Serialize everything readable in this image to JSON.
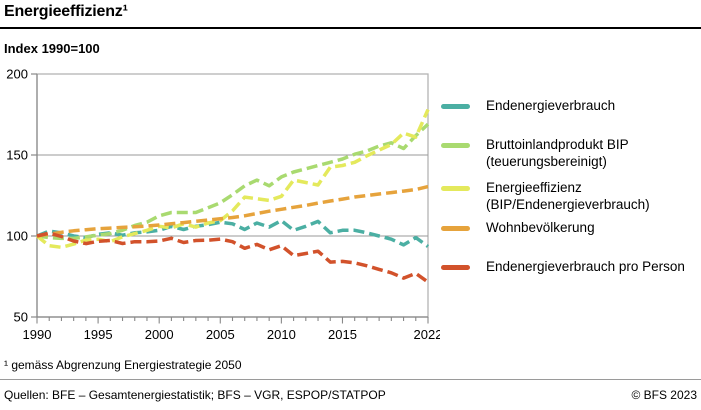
{
  "header": {
    "title": "Energieeffizienz¹",
    "subtitle": "Index 1990=100"
  },
  "footnote": "¹ gemäss Abgrenzung Energiestrategie 2050",
  "footer": {
    "sources": "Quellen: BFE – Gesamtenergiestatistik; BFS – VGR, ESPOP/STATPOP",
    "copyright": "© BFS 2023"
  },
  "colors": {
    "plot_border": "#b4b4b4",
    "gridline": "#999999",
    "axis": "#888888",
    "text": "#000000"
  },
  "chart_data": {
    "type": "line",
    "line_style": "dashed",
    "title": "Energieeffizienz",
    "ylabel": "Index 1990=100",
    "ylim": [
      50,
      200
    ],
    "y_ticks": [
      50,
      100,
      150,
      200
    ],
    "x_tick_labels": [
      1990,
      1995,
      2000,
      2005,
      2010,
      2015,
      2022
    ],
    "grid": true,
    "legend_position": "right",
    "years": [
      1990,
      1991,
      1992,
      1993,
      1994,
      1995,
      1996,
      1997,
      1998,
      1999,
      2000,
      2001,
      2002,
      2003,
      2004,
      2005,
      2006,
      2007,
      2008,
      2009,
      2010,
      2011,
      2012,
      2013,
      2014,
      2015,
      2016,
      2017,
      2018,
      2019,
      2020,
      2021,
      2022
    ],
    "series": [
      {
        "key": "endenergieverbrauch",
        "name": "Endenergieverbrauch",
        "color": "#4bafa3",
        "values": [
          100,
          103,
          102,
          100,
          99,
          101,
          102,
          100.5,
          102,
          102.5,
          103.5,
          106,
          104,
          106,
          107,
          108.5,
          107.5,
          104,
          108,
          105.5,
          109.5,
          103.5,
          106,
          109,
          102,
          103.5,
          103.5,
          102,
          100,
          98,
          94.5,
          99,
          93.5
        ]
      },
      {
        "key": "bip",
        "name": "Bruttoinlandprodukt BIP (teuerungsbereinigt)",
        "color": "#a9da70",
        "values": [
          100,
          99,
          98.5,
          98.5,
          99.5,
          100.5,
          101.5,
          103.5,
          106.5,
          108.5,
          112.5,
          114.5,
          114.5,
          114.5,
          117.5,
          120.5,
          125.5,
          131,
          134.5,
          131,
          136.5,
          139.5,
          141.5,
          143.5,
          145.5,
          147.5,
          150.5,
          152.5,
          155.5,
          157.5,
          154,
          162,
          169
        ]
      },
      {
        "key": "energieeffizienz",
        "name": "Energieeffizienz (BIP/Endenergieverbrauch)",
        "color": "#e4e95c",
        "values": [
          100,
          94,
          93,
          95,
          97.5,
          98,
          96.5,
          99.5,
          101.5,
          103.5,
          106,
          105,
          107.5,
          105.5,
          108,
          109.5,
          115.5,
          124,
          123,
          122,
          124.5,
          134.5,
          133,
          131.5,
          142.5,
          143.5,
          145.5,
          149.5,
          153,
          156.5,
          163.5,
          161,
          178
        ]
      },
      {
        "key": "wohnbevoelkerung",
        "name": "Wohnbevölkerung",
        "color": "#e6a33c",
        "values": [
          100,
          101.2,
          102.3,
          103.2,
          103.9,
          104.5,
          104.9,
          105.3,
          105.7,
          106.2,
          106.8,
          107.5,
          108.3,
          109.1,
          109.9,
          110.6,
          111.4,
          112.5,
          113.9,
          115.3,
          116.5,
          117.7,
          118.9,
          120.3,
          121.6,
          122.8,
          124.1,
          125,
          125.9,
          126.8,
          127.7,
          128.7,
          130.5
        ]
      },
      {
        "key": "endenergieverbrauch-pro-person",
        "name": "Endenergieverbrauch pro Person",
        "color": "#d2522b",
        "values": [
          100,
          101.8,
          99.7,
          96.9,
          95.3,
          96.7,
          97.2,
          95.4,
          96.5,
          96.5,
          96.9,
          98.6,
          96,
          97.2,
          97.4,
          98.1,
          96.5,
          92.4,
          94.8,
          91.5,
          94,
          87.9,
          89.2,
          90.6,
          83.9,
          84.3,
          83.4,
          81.6,
          79.4,
          77.3,
          74,
          76.9,
          71.6
        ]
      }
    ]
  }
}
